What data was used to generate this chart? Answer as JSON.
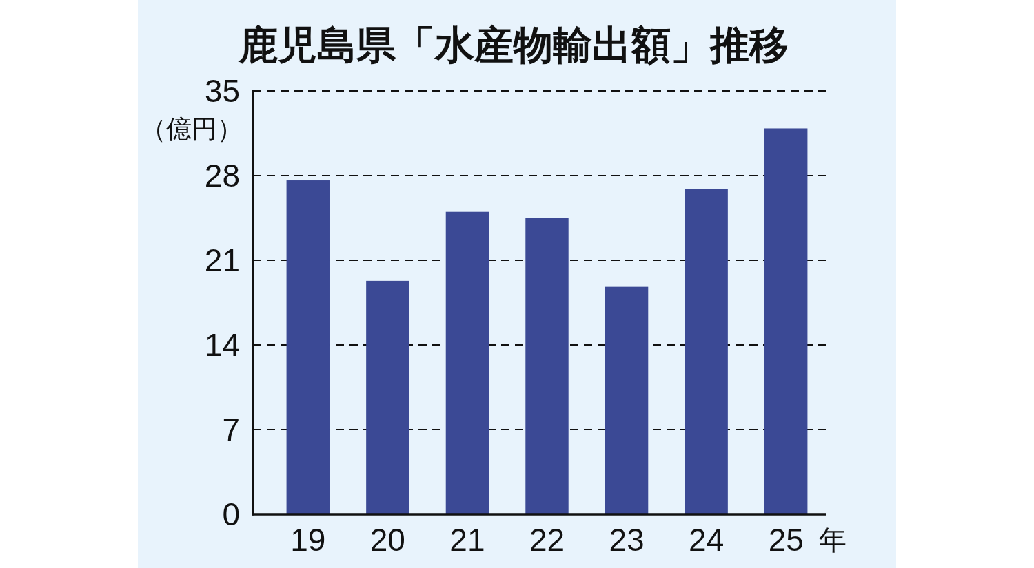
{
  "chart_data": {
    "type": "bar",
    "title": "鹿児島県「水産物輸出額」推移",
    "xlabel": "年",
    "ylabel": "（億円）",
    "categories": [
      "19",
      "20",
      "21",
      "22",
      "23",
      "24",
      "25"
    ],
    "values": [
      27.6,
      19.3,
      25.0,
      24.5,
      18.8,
      26.9,
      31.9
    ],
    "color": "#3b4995",
    "ylim": [
      0,
      35
    ],
    "yticks": [
      0,
      7,
      14,
      21,
      28,
      35
    ],
    "grid": "y"
  }
}
